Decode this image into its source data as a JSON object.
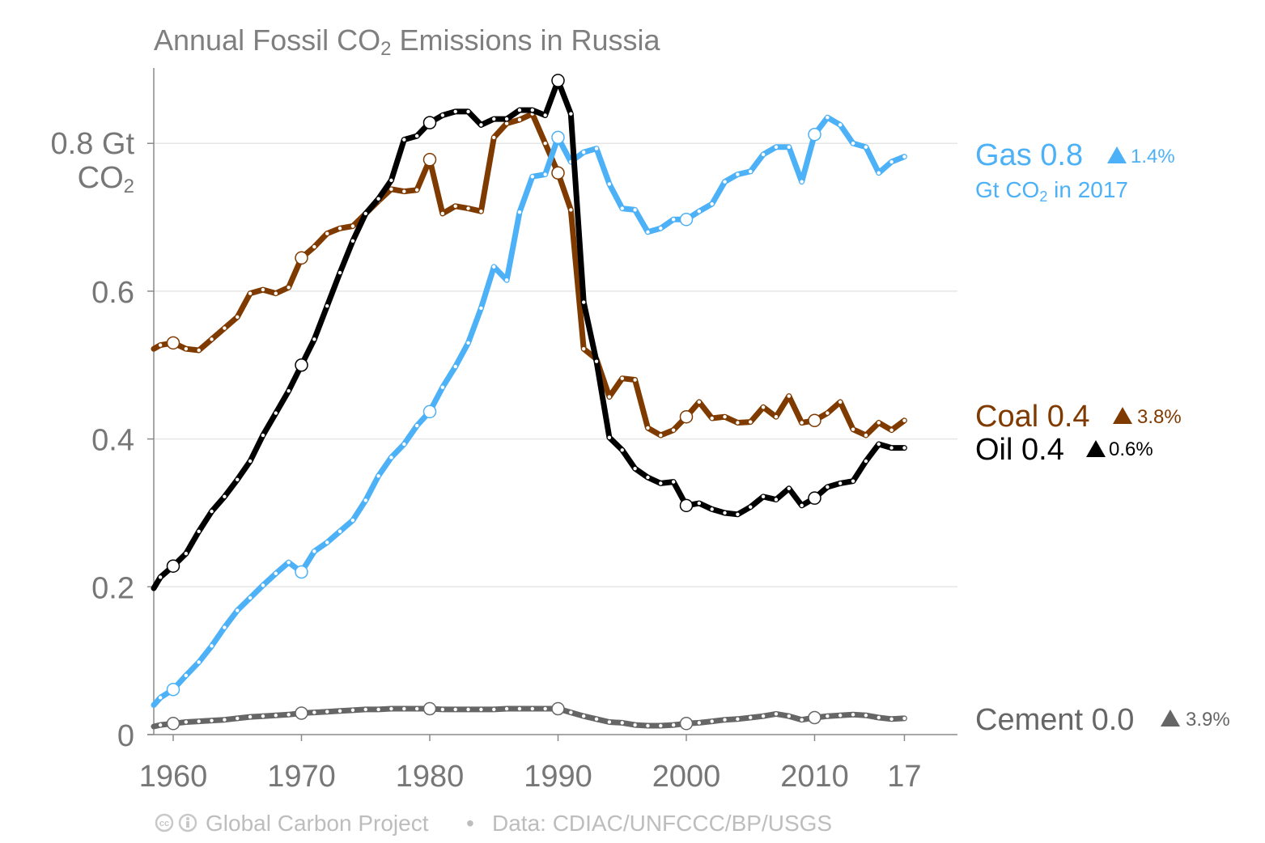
{
  "chart_data": {
    "type": "line",
    "title_prefix": "Annual Fossil CO",
    "title_sub": "2",
    "title_suffix": " Emissions in Russia",
    "ylabel_line1": "0.8 Gt",
    "ylabel_line2_prefix": "CO",
    "ylabel_line2_sub": "2",
    "yticks": [
      "0",
      "0.2",
      "0.4",
      "0.6"
    ],
    "ytick_values": [
      0,
      0.2,
      0.4,
      0.6
    ],
    "ylabel_value": 0.8,
    "xticks": [
      "1960",
      "1970",
      "1980",
      "1990",
      "2000",
      "2010",
      "17"
    ],
    "xtick_values": [
      1960,
      1970,
      1980,
      1990,
      2000,
      2010,
      2017
    ],
    "xlim": [
      1958.4,
      2021
    ],
    "ylim": [
      0,
      0.9
    ],
    "grid": "horizontal",
    "series": [
      {
        "name": "Coal",
        "color": "#7f3a00",
        "x": [
          1958,
          1959,
          1960,
          1961,
          1962,
          1963,
          1964,
          1965,
          1966,
          1967,
          1968,
          1969,
          1970,
          1971,
          1972,
          1973,
          1974,
          1975,
          1976,
          1977,
          1978,
          1979,
          1980,
          1981,
          1982,
          1983,
          1984,
          1985,
          1986,
          1987,
          1988,
          1989,
          1990,
          1991,
          1992,
          1993,
          1994,
          1995,
          1996,
          1997,
          1998,
          1999,
          2000,
          2001,
          2002,
          2003,
          2004,
          2005,
          2006,
          2007,
          2008,
          2009,
          2010,
          2011,
          2012,
          2013,
          2014,
          2015,
          2016,
          2017
        ],
        "values": [
          0.522,
          0.527,
          0.53,
          0.522,
          0.52,
          0.535,
          0.55,
          0.565,
          0.597,
          0.602,
          0.597,
          0.605,
          0.645,
          0.66,
          0.678,
          0.685,
          0.688,
          0.705,
          0.722,
          0.738,
          0.735,
          0.737,
          0.778,
          0.705,
          0.715,
          0.712,
          0.708,
          0.808,
          0.827,
          0.832,
          0.84,
          0.8,
          0.76,
          0.71,
          0.522,
          0.508,
          0.457,
          0.482,
          0.48,
          0.415,
          0.405,
          0.412,
          0.43,
          0.45,
          0.428,
          0.43,
          0.422,
          0.423,
          0.443,
          0.43,
          0.458,
          0.422,
          0.425,
          0.435,
          0.45,
          0.413,
          0.405,
          0.422,
          0.412,
          0.425
        ]
      },
      {
        "name": "Oil",
        "color": "#000000",
        "x": [
          1958,
          1959,
          1960,
          1961,
          1962,
          1963,
          1964,
          1965,
          1966,
          1967,
          1968,
          1969,
          1970,
          1971,
          1972,
          1973,
          1974,
          1975,
          1976,
          1977,
          1978,
          1979,
          1980,
          1981,
          1982,
          1983,
          1984,
          1985,
          1986,
          1987,
          1988,
          1989,
          1990,
          1991,
          1992,
          1993,
          1994,
          1995,
          1996,
          1997,
          1998,
          1999,
          2000,
          2001,
          2002,
          2003,
          2004,
          2005,
          2006,
          2007,
          2008,
          2009,
          2010,
          2011,
          2012,
          2013,
          2014,
          2015,
          2016,
          2017
        ],
        "values": [
          0.198,
          0.213,
          0.228,
          0.245,
          0.275,
          0.302,
          0.322,
          0.345,
          0.37,
          0.405,
          0.435,
          0.465,
          0.5,
          0.535,
          0.58,
          0.625,
          0.668,
          0.705,
          0.725,
          0.75,
          0.805,
          0.81,
          0.828,
          0.838,
          0.843,
          0.843,
          0.825,
          0.833,
          0.833,
          0.845,
          0.845,
          0.838,
          0.885,
          0.84,
          0.585,
          0.505,
          0.402,
          0.385,
          0.36,
          0.348,
          0.34,
          0.342,
          0.31,
          0.313,
          0.305,
          0.3,
          0.298,
          0.308,
          0.322,
          0.318,
          0.333,
          0.31,
          0.32,
          0.335,
          0.34,
          0.343,
          0.37,
          0.393,
          0.388,
          0.388
        ]
      },
      {
        "name": "Gas",
        "color": "#4db1f7",
        "x": [
          1958,
          1959,
          1960,
          1961,
          1962,
          1963,
          1964,
          1965,
          1966,
          1967,
          1968,
          1969,
          1970,
          1971,
          1972,
          1973,
          1974,
          1975,
          1976,
          1977,
          1978,
          1979,
          1980,
          1981,
          1982,
          1983,
          1984,
          1985,
          1986,
          1987,
          1988,
          1989,
          1990,
          1991,
          1992,
          1993,
          1994,
          1995,
          1996,
          1997,
          1998,
          1999,
          2000,
          2001,
          2002,
          2003,
          2004,
          2005,
          2006,
          2007,
          2008,
          2009,
          2010,
          2011,
          2012,
          2013,
          2014,
          2015,
          2016,
          2017
        ],
        "values": [
          0.04,
          0.05,
          0.061,
          0.08,
          0.098,
          0.12,
          0.145,
          0.168,
          0.185,
          0.202,
          0.218,
          0.233,
          0.22,
          0.248,
          0.26,
          0.275,
          0.29,
          0.317,
          0.35,
          0.375,
          0.393,
          0.418,
          0.437,
          0.47,
          0.498,
          0.53,
          0.577,
          0.633,
          0.615,
          0.707,
          0.755,
          0.758,
          0.808,
          0.775,
          0.788,
          0.793,
          0.745,
          0.712,
          0.71,
          0.68,
          0.685,
          0.697,
          0.697,
          0.708,
          0.718,
          0.748,
          0.758,
          0.762,
          0.785,
          0.795,
          0.795,
          0.748,
          0.812,
          0.835,
          0.825,
          0.8,
          0.795,
          0.76,
          0.775,
          0.782
        ]
      },
      {
        "name": "Cement",
        "color": "#666666",
        "x": [
          1958,
          1959,
          1960,
          1961,
          1962,
          1963,
          1964,
          1965,
          1966,
          1967,
          1968,
          1969,
          1970,
          1971,
          1972,
          1973,
          1974,
          1975,
          1976,
          1977,
          1978,
          1979,
          1980,
          1981,
          1982,
          1983,
          1984,
          1985,
          1986,
          1987,
          1988,
          1989,
          1990,
          1991,
          1992,
          1993,
          1994,
          1995,
          1996,
          1997,
          1998,
          1999,
          2000,
          2001,
          2002,
          2003,
          2004,
          2005,
          2006,
          2007,
          2008,
          2009,
          2010,
          2011,
          2012,
          2013,
          2014,
          2015,
          2016,
          2017
        ],
        "values": [
          0.011,
          0.013,
          0.015,
          0.017,
          0.018,
          0.019,
          0.02,
          0.022,
          0.024,
          0.025,
          0.026,
          0.027,
          0.029,
          0.03,
          0.031,
          0.032,
          0.033,
          0.034,
          0.034,
          0.035,
          0.035,
          0.035,
          0.035,
          0.034,
          0.034,
          0.034,
          0.034,
          0.034,
          0.035,
          0.035,
          0.035,
          0.035,
          0.035,
          0.03,
          0.025,
          0.021,
          0.017,
          0.016,
          0.013,
          0.012,
          0.012,
          0.013,
          0.015,
          0.016,
          0.018,
          0.02,
          0.021,
          0.023,
          0.025,
          0.028,
          0.025,
          0.02,
          0.023,
          0.025,
          0.026,
          0.027,
          0.026,
          0.023,
          0.021,
          0.022
        ]
      }
    ],
    "right_labels": [
      {
        "series": "Gas",
        "text": "Gas 0.8",
        "pct": "1.4%",
        "color": "#4db1f7",
        "note_prefix": "Gt CO",
        "note_sub": "2",
        "note_suffix": " in 2017"
      },
      {
        "series": "Coal",
        "text": "Coal 0.4",
        "pct": "3.8%",
        "color": "#7f3a00"
      },
      {
        "series": "Oil",
        "text": "Oil 0.4",
        "pct": "0.6%",
        "color": "#000000"
      },
      {
        "series": "Cement",
        "text": "Cement 0.0",
        "pct": "3.9%",
        "color": "#666666"
      }
    ]
  },
  "footer": {
    "source": "Global Carbon Project",
    "separator": "•",
    "data": "Data: CDIAC/UNFCCC/BP/USGS"
  }
}
